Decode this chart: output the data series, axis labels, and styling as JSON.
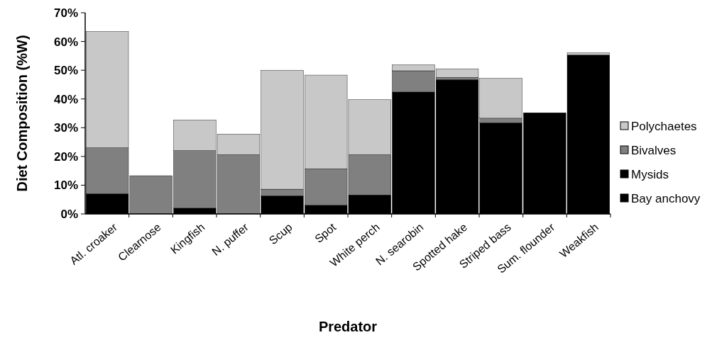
{
  "chart_data": {
    "type": "bar",
    "stacked": true,
    "xlabel": "Predator",
    "ylabel": "Diet Composition (%W)",
    "categories": [
      "Atl. croaker",
      "Clearnose",
      "Kingfish",
      "N. puffer",
      "Scup",
      "Spot",
      "White perch",
      "N. searobin",
      "Spotted hake",
      "Striped bass",
      "Sum. flounder",
      "Weakfish"
    ],
    "series": [
      {
        "name": "Bay anchovy",
        "color": "#000000",
        "values": [
          0,
          0,
          0,
          0,
          0,
          0,
          0,
          42.4,
          46.7,
          31.7,
          35.2,
          55.3
        ]
      },
      {
        "name": "Mysids",
        "color": "#000000",
        "values": [
          7,
          0,
          2,
          0,
          6.3,
          3,
          6.6,
          0,
          0,
          0,
          0,
          0
        ]
      },
      {
        "name": "Bivalves",
        "color": "#808080",
        "values": [
          16,
          13.3,
          20,
          20.6,
          2.3,
          12.7,
          14,
          7.4,
          0.8,
          1.6,
          0,
          0
        ]
      },
      {
        "name": "Polychaetes",
        "color": "#c8c8c8",
        "values": [
          40.5,
          0,
          10.7,
          7.2,
          41.4,
          32.6,
          19.2,
          2.1,
          3,
          13.9,
          0,
          0.8
        ]
      }
    ],
    "ylim": [
      0,
      70
    ],
    "yticks": [
      {
        "value": 0,
        "label": "0%"
      },
      {
        "value": 10,
        "label": "10%"
      },
      {
        "value": 20,
        "label": "20%"
      },
      {
        "value": 30,
        "label": "30%"
      },
      {
        "value": 40,
        "label": "40%"
      },
      {
        "value": 50,
        "label": "50%"
      },
      {
        "value": 60,
        "label": "60%"
      },
      {
        "value": 70,
        "label": "70%"
      }
    ],
    "legend": "right"
  }
}
